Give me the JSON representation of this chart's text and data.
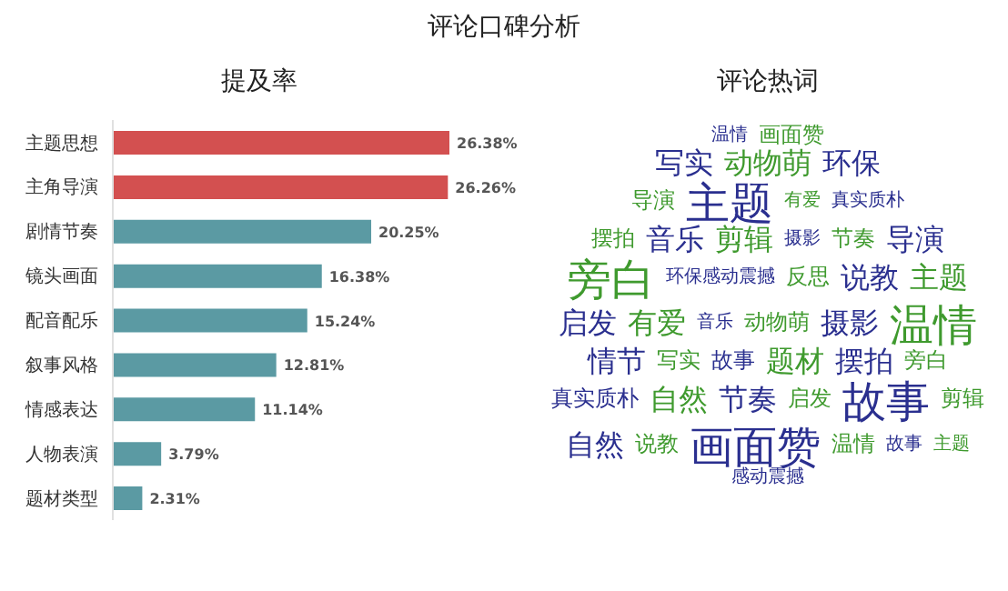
{
  "chart_data": [
    {
      "type": "bar",
      "title": "提及率",
      "orientation": "horizontal",
      "tick_labels": "y",
      "annotations": [
        "评论口碑分析"
      ],
      "categories": [
        "主题思想",
        "主角导演",
        "剧情节奏",
        "镜头画面",
        "配音配乐",
        "叙事风格",
        "情感表达",
        "人物表演",
        "题材类型"
      ],
      "values": [
        26.38,
        26.26,
        20.25,
        16.38,
        15.24,
        12.81,
        11.14,
        3.79,
        2.31
      ],
      "colors": [
        "#d35050",
        "#d35050",
        "#5b9aa3",
        "#5b9aa3",
        "#5b9aa3",
        "#5b9aa3",
        "#5b9aa3",
        "#5b9aa3",
        "#5b9aa3"
      ],
      "value_labels": [
        "26.38%",
        "26.26%",
        "20.25%",
        "16.38%",
        "15.24%",
        "12.81%",
        "11.14%",
        "3.79%",
        "2.31%"
      ]
    },
    {
      "type": "other",
      "title": "评论热词",
      "annotations": [
        "温情",
        "画面赞",
        "写实",
        "动物萌",
        "环保",
        "导演",
        "主题",
        "有爱",
        "真实质朴",
        "摆拍",
        "音乐",
        "剪辑",
        "摄影",
        "节奏",
        "导演",
        "旁白",
        "环保感动震撼",
        "反思",
        "说教",
        "主题",
        "启发",
        "有爱",
        "音乐",
        "动物萌",
        "摄影",
        "温情",
        "情节",
        "写实",
        "故事",
        "题材",
        "摆拍",
        "旁白",
        "真实质朴",
        "自然",
        "节奏",
        "启发",
        "故事",
        "剪辑",
        "自然",
        "说教",
        "画面赞",
        "温情",
        "故事",
        "主题",
        "感动震撼"
      ]
    }
  ]
}
